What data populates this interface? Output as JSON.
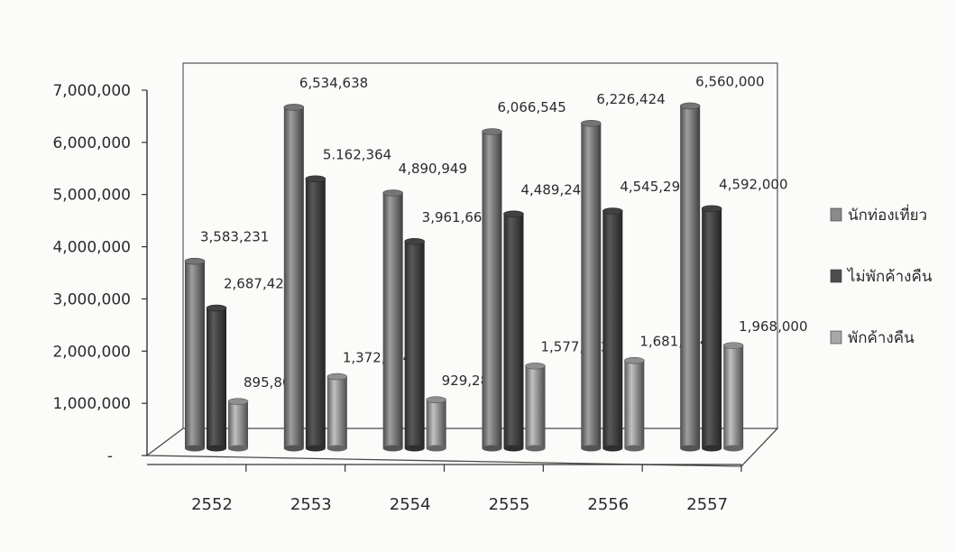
{
  "chart_data": {
    "type": "bar",
    "style": "3d-cylinder",
    "categories": [
      "2552",
      "2553",
      "2554",
      "2555",
      "2556",
      "2557"
    ],
    "series": [
      {
        "name": "นักท่องเที่ยว",
        "values": [
          3583231,
          6534638,
          4890949,
          6066545,
          6226424,
          6560000
        ],
        "color": "#8a8a8a"
      },
      {
        "name": "ไม่พักค้างคืน",
        "values": [
          2687423,
          5162364,
          3961669,
          4489243,
          4545290,
          4592000
        ],
        "color": "#4d4d4d"
      },
      {
        "name": "พักค้างคืน",
        "values": [
          895808,
          1372274,
          929280,
          1577302,
          1681134,
          1968000
        ],
        "color": "#a8a8a8"
      }
    ],
    "data_labels": [
      [
        "3,583,231",
        "6,534,638",
        "4,890,949",
        "6,066,545",
        "6,226,424",
        "6,560,000"
      ],
      [
        "2,687,423",
        "5.162,364",
        "3,961,669",
        "4,489,243",
        "4,545,290",
        "4,592,000"
      ],
      [
        "895,808",
        "1,372,274",
        "929,280",
        "1,577,302",
        "1,681,134",
        "1,968,000"
      ]
    ],
    "y_ticks": [
      "-",
      "1,000,000",
      "2,000,000",
      "3,000,000",
      "4,000,000",
      "5,000,000",
      "6,000,000",
      "7,000,000"
    ],
    "ylim": [
      0,
      7000000
    ],
    "legend_position": "right",
    "grid": false,
    "title": "",
    "xlabel": "",
    "ylabel": ""
  }
}
